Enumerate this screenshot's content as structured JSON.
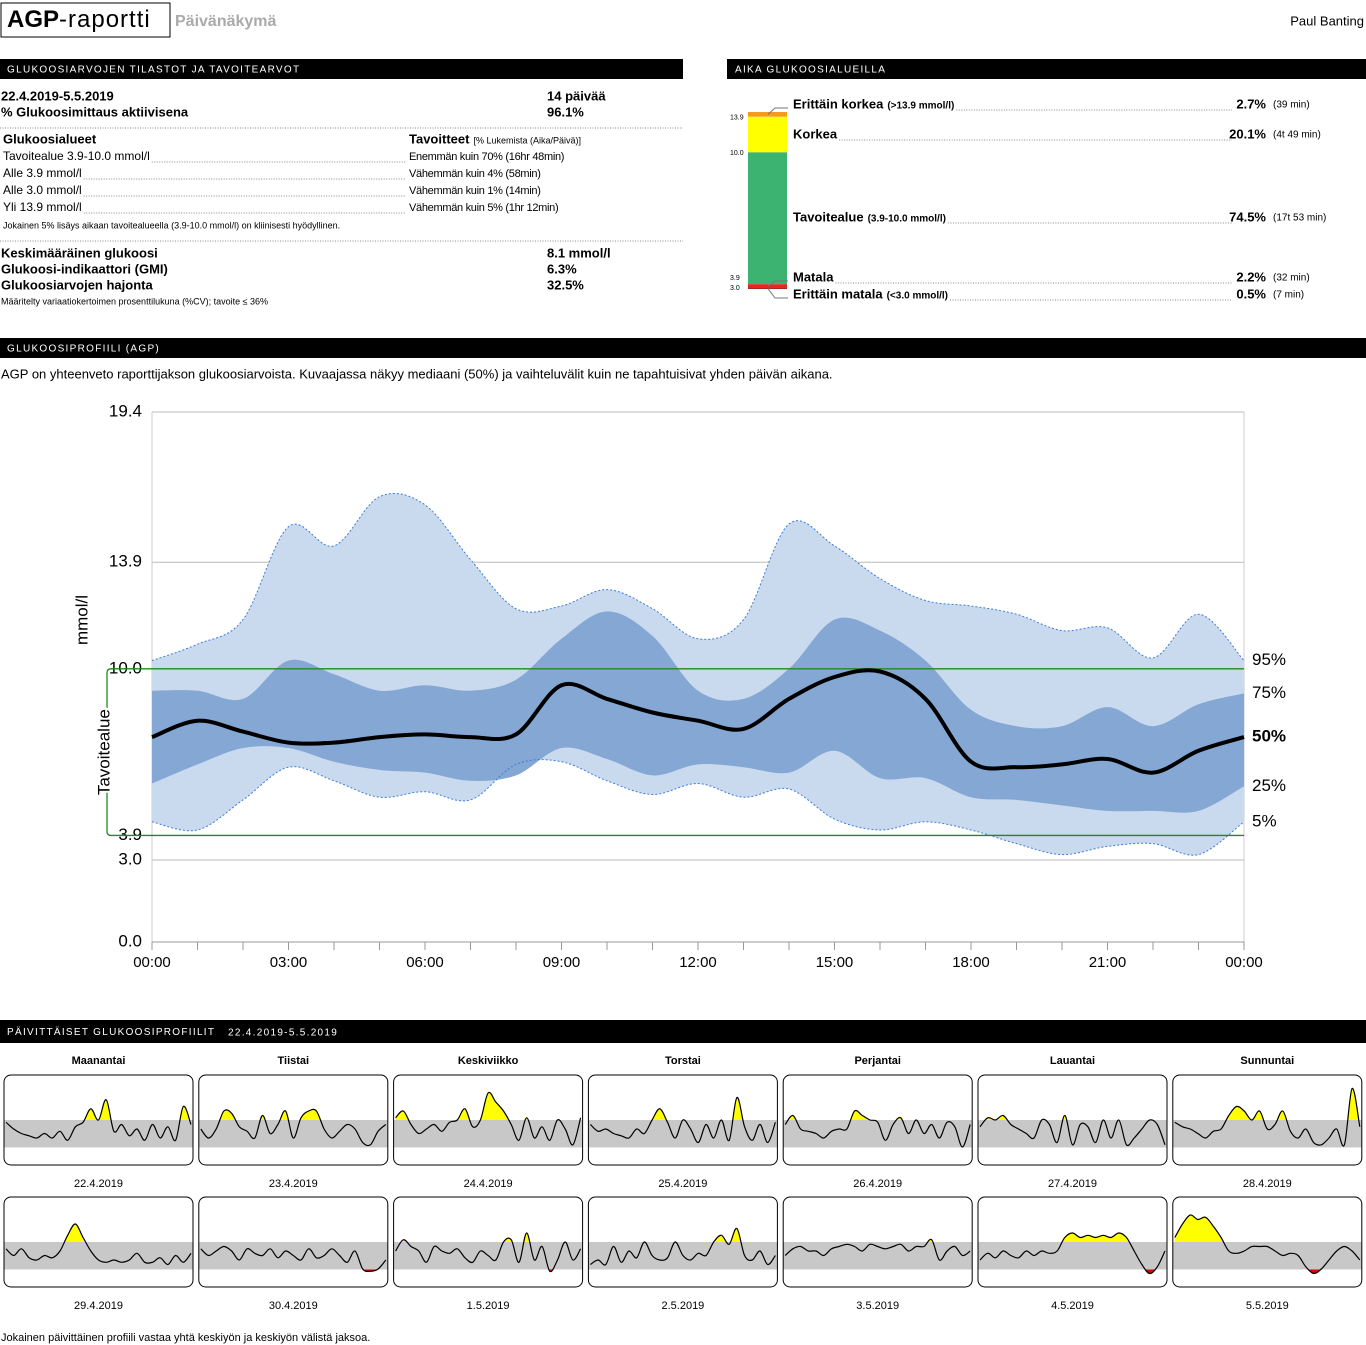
{
  "header": {
    "title_bold": "AGP",
    "title_rest": "-raportti",
    "view": "Päivänäkymä",
    "patient": "Paul Banting"
  },
  "stats": {
    "heading": "GLUKOOSIARVOJEN TILASTOT JA TAVOITEARVOT",
    "period": "22.4.2019-5.5.2019",
    "days": "14 päivää",
    "active_label": "% Glukoosimittaus aktiivisena",
    "active_value": "96.1%",
    "ranges_heading": "Glukoosialueet",
    "targets_heading": "Tavoitteet",
    "targets_note": "[% Lukemista (Aika/Päivä)]",
    "rows": [
      [
        "Tavoitealue 3.9-10.0 mmol/l",
        "Enemmän kuin 70% (16hr 48min)"
      ],
      [
        "Alle 3.9 mmol/l",
        "Vähemmän kuin 4% (58min)"
      ],
      [
        "Alle 3.0 mmol/l",
        "Vähemmän kuin 1% (14min)"
      ],
      [
        "Yli 13.9 mmol/l",
        "Vähemmän kuin 5% (1hr 12min)"
      ]
    ],
    "rows_note": "Jokainen 5% lisäys aikaan tavoitealueella (3.9-10.0 mmol/l) on kliinisesti hyödyllinen.",
    "metrics": [
      [
        "Keskimääräinen glukoosi",
        "8.1 mmol/l"
      ],
      [
        "Glukoosi-indikaattori (GMI)",
        "6.3%"
      ],
      [
        "Glukoosiarvojen hajonta",
        "32.5%"
      ]
    ],
    "metrics_note": "Määritelty variaatiokertoimen prosenttilukuna (%CV); tavoite ≤ 36%"
  },
  "chart_data": [
    {
      "type": "stacked-bar",
      "title": "AIKA GLUKOOSIALUEILLA",
      "series": [
        {
          "name": "Erittäin korkea",
          "range": "(>13.9 mmol/l)",
          "color": "#f39a1f",
          "values": [
            2.7
          ],
          "value_labels": [
            "2.7%"
          ],
          "time": "(39 min)"
        },
        {
          "name": "Korkea",
          "color": "#ffff00",
          "values": [
            20.1
          ],
          "value_labels": [
            "20.1%"
          ],
          "time": "(4t 49 min)"
        },
        {
          "name": "Tavoitealue",
          "range": "(3.9-10.0 mmol/l)",
          "color": "#3cb371",
          "values": [
            74.5
          ],
          "value_labels": [
            "74.5%"
          ],
          "time": "(17t 53 min)"
        },
        {
          "name": "Matala",
          "color": "#e8261f",
          "values": [
            2.2
          ],
          "value_labels": [
            "2.2%"
          ],
          "time": "(32 min)"
        },
        {
          "name": "Erittäin matala",
          "range": "(<3.0 mmol/l)",
          "color": "#a01010",
          "values": [
            0.5
          ],
          "value_labels": [
            "0.5%"
          ],
          "time": "(7 min)"
        }
      ],
      "thresholds": [
        13.9,
        {
          "value": 10,
          "label": "10.0"
        },
        3.9,
        {
          "value": 3,
          "label": "3.0"
        }
      ]
    },
    {
      "type": "percentile-bands",
      "title": "GLUKOOSIPROFIILI (AGP)",
      "subtitle": "AGP on yhteenveto raporttijakson glukoosiarvoista. Kuvaajassa näkyy mediaani (50%) ja vaihteluvälit kuin ne tapahtuisivat yhden päivän aikana.",
      "ylabel": "mmol/l",
      "target_label": "Tavoitealue",
      "target_range": [
        3.9,
        10
      ],
      "target_color": "#1f8a1f",
      "outline_color": "#3b7dd8",
      "grid": true,
      "x": [
        0,
        1,
        2,
        3,
        4,
        5,
        6,
        7,
        8,
        9,
        10,
        11,
        12,
        13,
        14,
        15,
        16,
        17,
        18,
        19,
        20,
        21,
        22,
        23,
        24
      ],
      "xlim": [
        0,
        24
      ],
      "xticks": [
        {
          "value": 0,
          "label": "00:00"
        },
        {
          "value": 3,
          "label": "03:00"
        },
        {
          "value": 6,
          "label": "06:00"
        },
        {
          "value": 9,
          "label": "09:00"
        },
        {
          "value": 12,
          "label": "12:00"
        },
        {
          "value": 15,
          "label": "15:00"
        },
        {
          "value": 18,
          "label": "18:00"
        },
        {
          "value": 21,
          "label": "21:00"
        },
        {
          "value": 24,
          "label": "00:00"
        }
      ],
      "ylim": [
        0,
        19.4
      ],
      "yticks": [
        {
          "value": 0,
          "label": "0.0"
        },
        {
          "value": 3,
          "label": "3.0"
        },
        3.9,
        {
          "value": 10,
          "label": "10.0"
        },
        13.9,
        19.4
      ],
      "series": [
        {
          "name": "95%",
          "color": "#c9d9ee",
          "values": [
            10.3,
            10.9,
            11.8,
            15.2,
            14.5,
            16.3,
            16.0,
            14.0,
            12.2,
            12.3,
            12.9,
            12.2,
            11.1,
            11.8,
            15.3,
            14.5,
            13.3,
            12.5,
            12.3,
            12.0,
            11.4,
            11.5,
            10.4,
            12.0,
            10.3
          ]
        },
        {
          "name": "75%",
          "color": "#84a7d4",
          "values": [
            9.2,
            9.2,
            8.9,
            10.3,
            9.8,
            9.2,
            9.4,
            9.2,
            9.6,
            11.1,
            12.1,
            11.2,
            9.2,
            8.9,
            10.0,
            11.8,
            11.4,
            10.3,
            8.5,
            7.9,
            7.9,
            8.6,
            7.9,
            8.7,
            9.1
          ]
        },
        {
          "name": "50%",
          "color": "#000000",
          "values": [
            7.5,
            8.1,
            7.7,
            7.3,
            7.3,
            7.5,
            7.6,
            7.5,
            7.6,
            9.4,
            8.9,
            8.4,
            8.1,
            7.8,
            8.9,
            9.7,
            9.9,
            8.9,
            6.6,
            6.4,
            6.5,
            6.7,
            6.2,
            7.0,
            7.5
          ]
        },
        {
          "name": "25%",
          "color": "#84a7d4",
          "values": [
            5.8,
            6.5,
            7.1,
            7.1,
            6.6,
            6.3,
            6.2,
            5.9,
            6.1,
            7.1,
            6.7,
            6.1,
            6.5,
            6.4,
            6.2,
            7.0,
            6.0,
            6.0,
            5.3,
            5.2,
            5.0,
            4.8,
            4.8,
            4.8,
            5.7
          ]
        },
        {
          "name": "5%",
          "color": "#c9d9ee",
          "values": [
            4.4,
            4.1,
            5.2,
            6.4,
            5.9,
            5.3,
            5.5,
            5.2,
            6.5,
            6.6,
            5.9,
            5.4,
            5.8,
            5.3,
            5.6,
            4.5,
            4.1,
            4.4,
            4.1,
            3.6,
            3.2,
            3.5,
            3.6,
            3.2,
            4.4
          ]
        }
      ]
    },
    {
      "type": "small-multiples",
      "title": "PÄIVITTÄISET GLUKOOSIPROFIILIT",
      "subtitle": "22.4.2019-5.5.2019",
      "x": [
        0,
        1,
        2,
        3,
        4,
        5,
        6,
        7,
        8,
        9,
        10,
        11,
        12,
        13,
        14,
        15,
        16,
        17,
        18,
        19,
        20,
        21,
        22,
        23,
        24
      ],
      "xlim": [
        0,
        24
      ],
      "ylim": [
        0,
        20
      ],
      "target_range": [
        3.9,
        10
      ],
      "colors": {
        "line": "#000000",
        "target": "#c8c8c8",
        "high": "#ffff00",
        "low": "#e00000"
      },
      "panels": [
        {
          "title": "Maanantai",
          "date": "22.4.2019",
          "values": [
            9.5,
            8,
            7,
            6.5,
            6,
            7,
            6,
            7.5,
            5.5,
            8.5,
            9.5,
            12.5,
            10,
            14.5,
            7.5,
            9,
            6.5,
            8,
            5.5,
            9,
            6,
            8.5,
            5.5,
            13,
            9
          ]
        },
        {
          "title": "Tiistai",
          "date": "23.4.2019",
          "values": [
            8,
            6,
            8,
            12,
            11.5,
            8.5,
            7.5,
            6,
            11,
            7,
            9,
            12,
            6,
            10.5,
            12,
            12,
            8,
            6,
            7.5,
            9,
            8,
            5,
            4.5,
            7.5,
            9
          ]
        },
        {
          "title": "Keskiviikko",
          "date": "24.4.2019",
          "values": [
            10.5,
            12,
            9,
            7,
            8,
            9,
            7.5,
            9.5,
            10,
            12.5,
            8.5,
            10,
            16,
            14,
            12,
            9,
            5.5,
            10.5,
            6,
            8.5,
            5.5,
            10,
            8,
            4.5,
            10.5
          ]
        },
        {
          "title": "Torstai",
          "date": "25.4.2019",
          "values": [
            9,
            7.5,
            8,
            7,
            6.5,
            6,
            8,
            7,
            10,
            12.5,
            9.5,
            6,
            10,
            8,
            5,
            9,
            6,
            10,
            5.5,
            15,
            8.5,
            5.5,
            9,
            5,
            9.5
          ]
        },
        {
          "title": "Perjantai",
          "date": "26.4.2019",
          "values": [
            9,
            11,
            8,
            7.5,
            7,
            6,
            7.5,
            8,
            8,
            12,
            11,
            10,
            9.5,
            5.5,
            9,
            10.5,
            7,
            10,
            7,
            9,
            6,
            9.5,
            8.5,
            4,
            9
          ]
        },
        {
          "title": "Lauantai",
          "date": "27.4.2019",
          "values": [
            8.5,
            10.5,
            10,
            11,
            9,
            8,
            7,
            6,
            10,
            9,
            5,
            11,
            4.5,
            9,
            8.5,
            5,
            10,
            6,
            10,
            4.5,
            6,
            8,
            10,
            9,
            4.5
          ]
        },
        {
          "title": "Sunnuntai",
          "date": "28.4.2019",
          "values": [
            9.5,
            8.5,
            8,
            7,
            6,
            7.5,
            8,
            11,
            13,
            12,
            10,
            12,
            8,
            9,
            12,
            7.5,
            6,
            8,
            5,
            4.5,
            6,
            8,
            4.5,
            17,
            8.5
          ]
        },
        {
          "date": "29.4.2019",
          "values": [
            8.5,
            7,
            8.5,
            6.5,
            6,
            7,
            6.5,
            8,
            11.5,
            14,
            11,
            8,
            6,
            5.5,
            6,
            5.5,
            6,
            7.5,
            5.5,
            5.5,
            6.5,
            5,
            7,
            5.5,
            7.5
          ]
        },
        {
          "date": "30.4.2019",
          "values": [
            8.5,
            7,
            8,
            9,
            8,
            6,
            8.5,
            7.5,
            7,
            8.5,
            6.5,
            8,
            7,
            6,
            8.5,
            6.5,
            7,
            8.5,
            7,
            5.5,
            8,
            4,
            3.5,
            4,
            6
          ]
        },
        {
          "date": "1.5.2019",
          "values": [
            8,
            10.5,
            9,
            8,
            5.5,
            9,
            8,
            7.5,
            8.5,
            6.5,
            5.5,
            8,
            7,
            6,
            10,
            10.5,
            5.5,
            12,
            6,
            9,
            3.5,
            6,
            10,
            6,
            8.5
          ]
        },
        {
          "date": "2.5.2019",
          "values": [
            5,
            6,
            5,
            9,
            5.5,
            8,
            6.5,
            10,
            7,
            6,
            6.5,
            10,
            7,
            6,
            7.5,
            7,
            10,
            11.5,
            9.5,
            13,
            7,
            6,
            8,
            5,
            7
          ]
        },
        {
          "date": "3.5.2019",
          "values": [
            7,
            8.5,
            9,
            8,
            8,
            7,
            8.5,
            9,
            9.5,
            9,
            8,
            9.5,
            9,
            8.5,
            9,
            9.5,
            8,
            9,
            9,
            10.5,
            6,
            8,
            9,
            7,
            8
          ]
        },
        {
          "date": "4.5.2019",
          "values": [
            6,
            7.5,
            6.5,
            8,
            7,
            6.5,
            8,
            7,
            8,
            7.5,
            8,
            11,
            12,
            11,
            11.5,
            11,
            11.5,
            11,
            12,
            11,
            8,
            5,
            3,
            4.5,
            8
          ]
        },
        {
          "date": "5.5.2019",
          "values": [
            11,
            14,
            16,
            15,
            15.5,
            13.5,
            11,
            8,
            7.5,
            8,
            9,
            9,
            9,
            8,
            7,
            7.5,
            7,
            4.5,
            3,
            4,
            6,
            8,
            9,
            8,
            6
          ]
        }
      ]
    }
  ],
  "footer": "Jokainen päivittäinen profiili vastaa yhtä keskiyön ja keskiyön välistä jaksoa."
}
